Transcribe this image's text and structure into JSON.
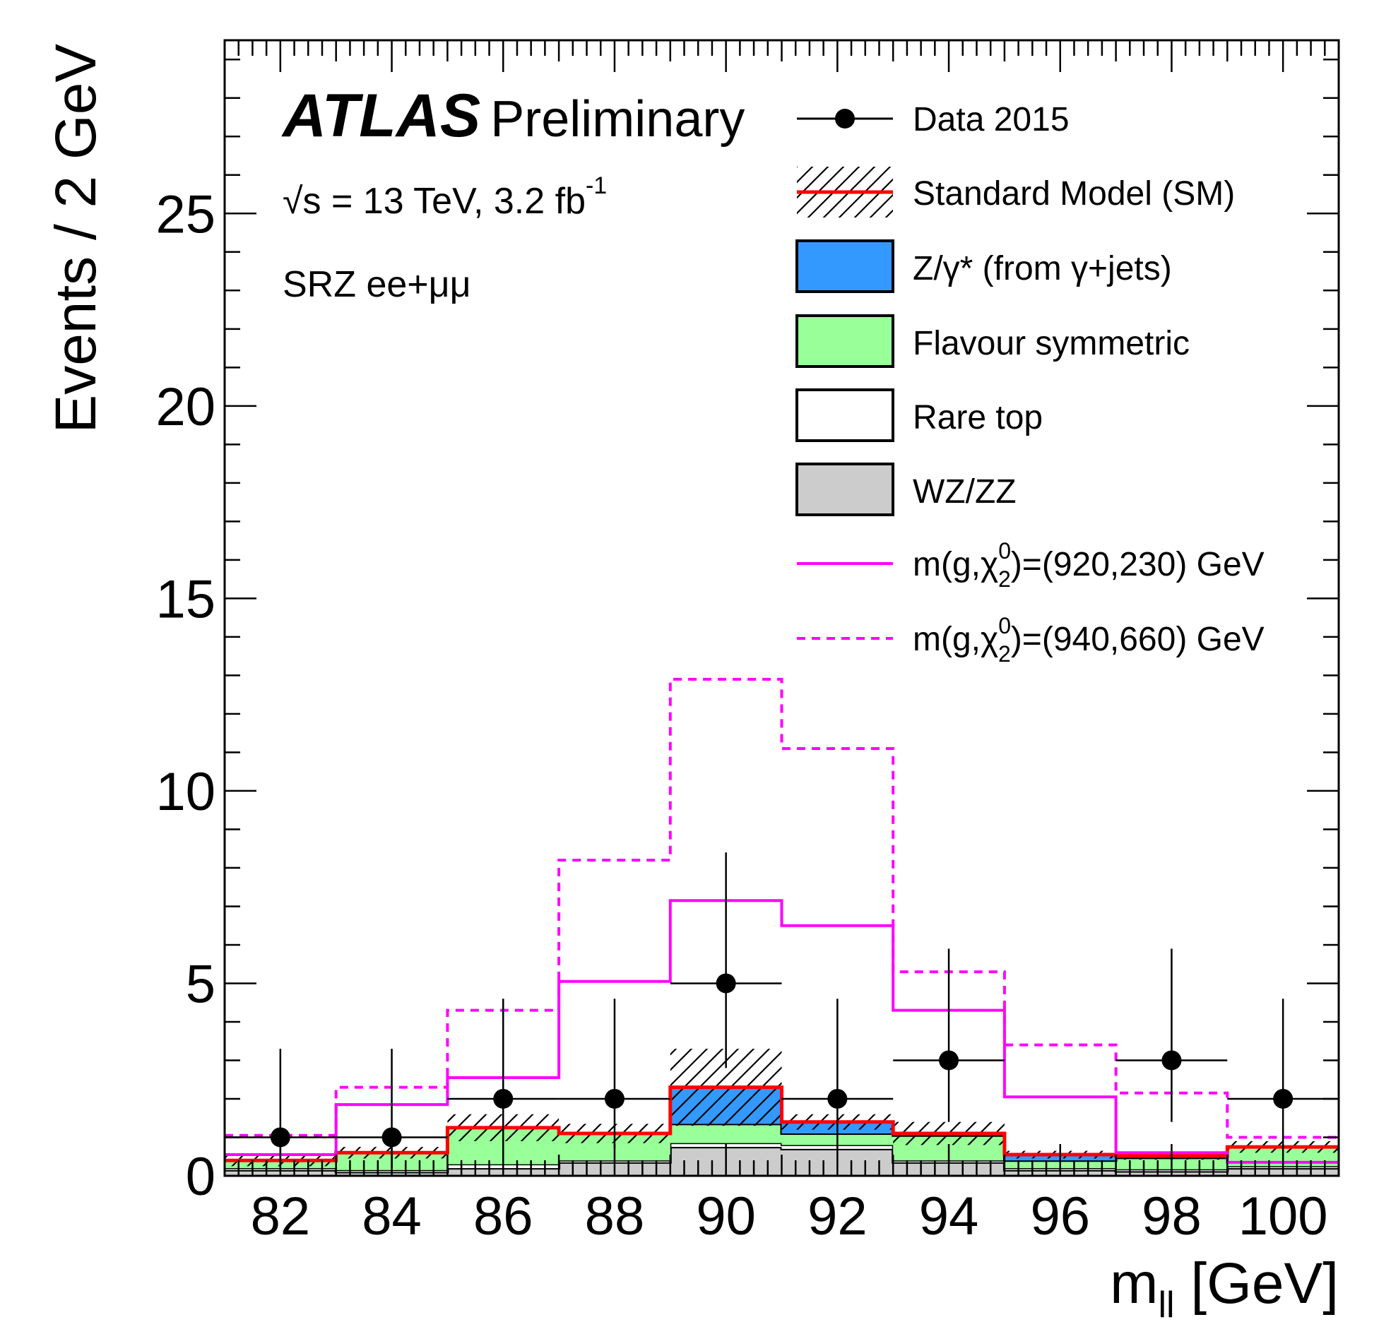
{
  "chart_data": {
    "type": "histogram",
    "ylabel": "Events / 2 GeV",
    "xlabel_main": "m",
    "xlabel_sub": "ll",
    "xlabel_unit": " [GeV]",
    "xlim": [
      81,
      101
    ],
    "ylim": [
      0,
      29.5
    ],
    "x_ticks": [
      82,
      84,
      86,
      88,
      90,
      92,
      94,
      96,
      98,
      100
    ],
    "y_ticks": [
      0,
      5,
      10,
      15,
      20,
      25
    ],
    "bin_edges": [
      81,
      83,
      85,
      87,
      89,
      91,
      93,
      95,
      97,
      99,
      101
    ],
    "labels": {
      "atlas": "ATLAS",
      "preliminary": "Preliminary",
      "energy_sqrt": "√s",
      "energy_text": " = 13 TeV, 3.2 fb",
      "energy_sup": "-1",
      "region": "SRZ ee+μμ"
    },
    "series": [
      {
        "key": "data",
        "name": "Data 2015",
        "values": [
          1,
          1,
          2,
          2,
          5,
          2,
          3,
          0,
          3,
          2
        ],
        "err_up": [
          2.3,
          2.3,
          2.6,
          2.6,
          3.4,
          2.6,
          2.9,
          0,
          2.9,
          2.6
        ],
        "err_down": [
          0.8,
          0.8,
          1.3,
          1.3,
          2.2,
          1.3,
          1.6,
          0,
          1.6,
          1.3
        ]
      },
      {
        "key": "wzzz",
        "name": "WZ/ZZ",
        "values": [
          0.15,
          0.1,
          0.2,
          0.35,
          0.75,
          0.7,
          0.35,
          0.15,
          0.12,
          0.2
        ],
        "color": "#cccccc"
      },
      {
        "key": "raretop",
        "name": "Rare top",
        "values": [
          0.05,
          0.05,
          0.1,
          0.05,
          0.1,
          0.1,
          0.05,
          0.05,
          0.05,
          0.05
        ],
        "color": "#ffffff"
      },
      {
        "key": "fs",
        "name": "Flavour symmetric",
        "values": [
          0.2,
          0.45,
          0.95,
          0.7,
          0.5,
          0.3,
          0.65,
          0.2,
          0.3,
          0.5
        ],
        "color": "#99ff99"
      },
      {
        "key": "zgamma",
        "name": "Z/γ* (from γ+jets)",
        "values": [
          0.0,
          0.0,
          0.0,
          0.0,
          0.95,
          0.3,
          0.05,
          0.15,
          0.05,
          0.0
        ],
        "color": "#3399ff"
      },
      {
        "key": "sm",
        "name": "Standard Model (SM)",
        "values": [
          0.4,
          0.6,
          1.25,
          1.1,
          2.3,
          1.4,
          1.1,
          0.55,
          0.52,
          0.75
        ],
        "unc": [
          0.15,
          0.15,
          0.35,
          0.25,
          1.0,
          0.2,
          0.3,
          0.1,
          0.1,
          0.15
        ],
        "color": "#ff0000"
      },
      {
        "key": "sig1",
        "name_pre": "m(",
        "name_g": "g",
        "name_chi": "χ",
        "name_sup": "0",
        "name_sub": "2",
        "name_post": ")=(920,230) GeV",
        "values": [
          0.55,
          1.85,
          2.55,
          5.05,
          7.15,
          6.5,
          4.3,
          2.05,
          0.6,
          0.35
        ],
        "color": "#ff00ff"
      },
      {
        "key": "sig2",
        "name_pre": "m(",
        "name_g": "g",
        "name_chi": "χ",
        "name_sup": "0",
        "name_sub": "2",
        "name_post": ")=(940,660) GeV",
        "values": [
          1.05,
          2.3,
          4.3,
          8.2,
          12.9,
          11.1,
          5.3,
          3.4,
          2.15,
          1.0
        ],
        "color": "#ff00ff"
      }
    ]
  }
}
